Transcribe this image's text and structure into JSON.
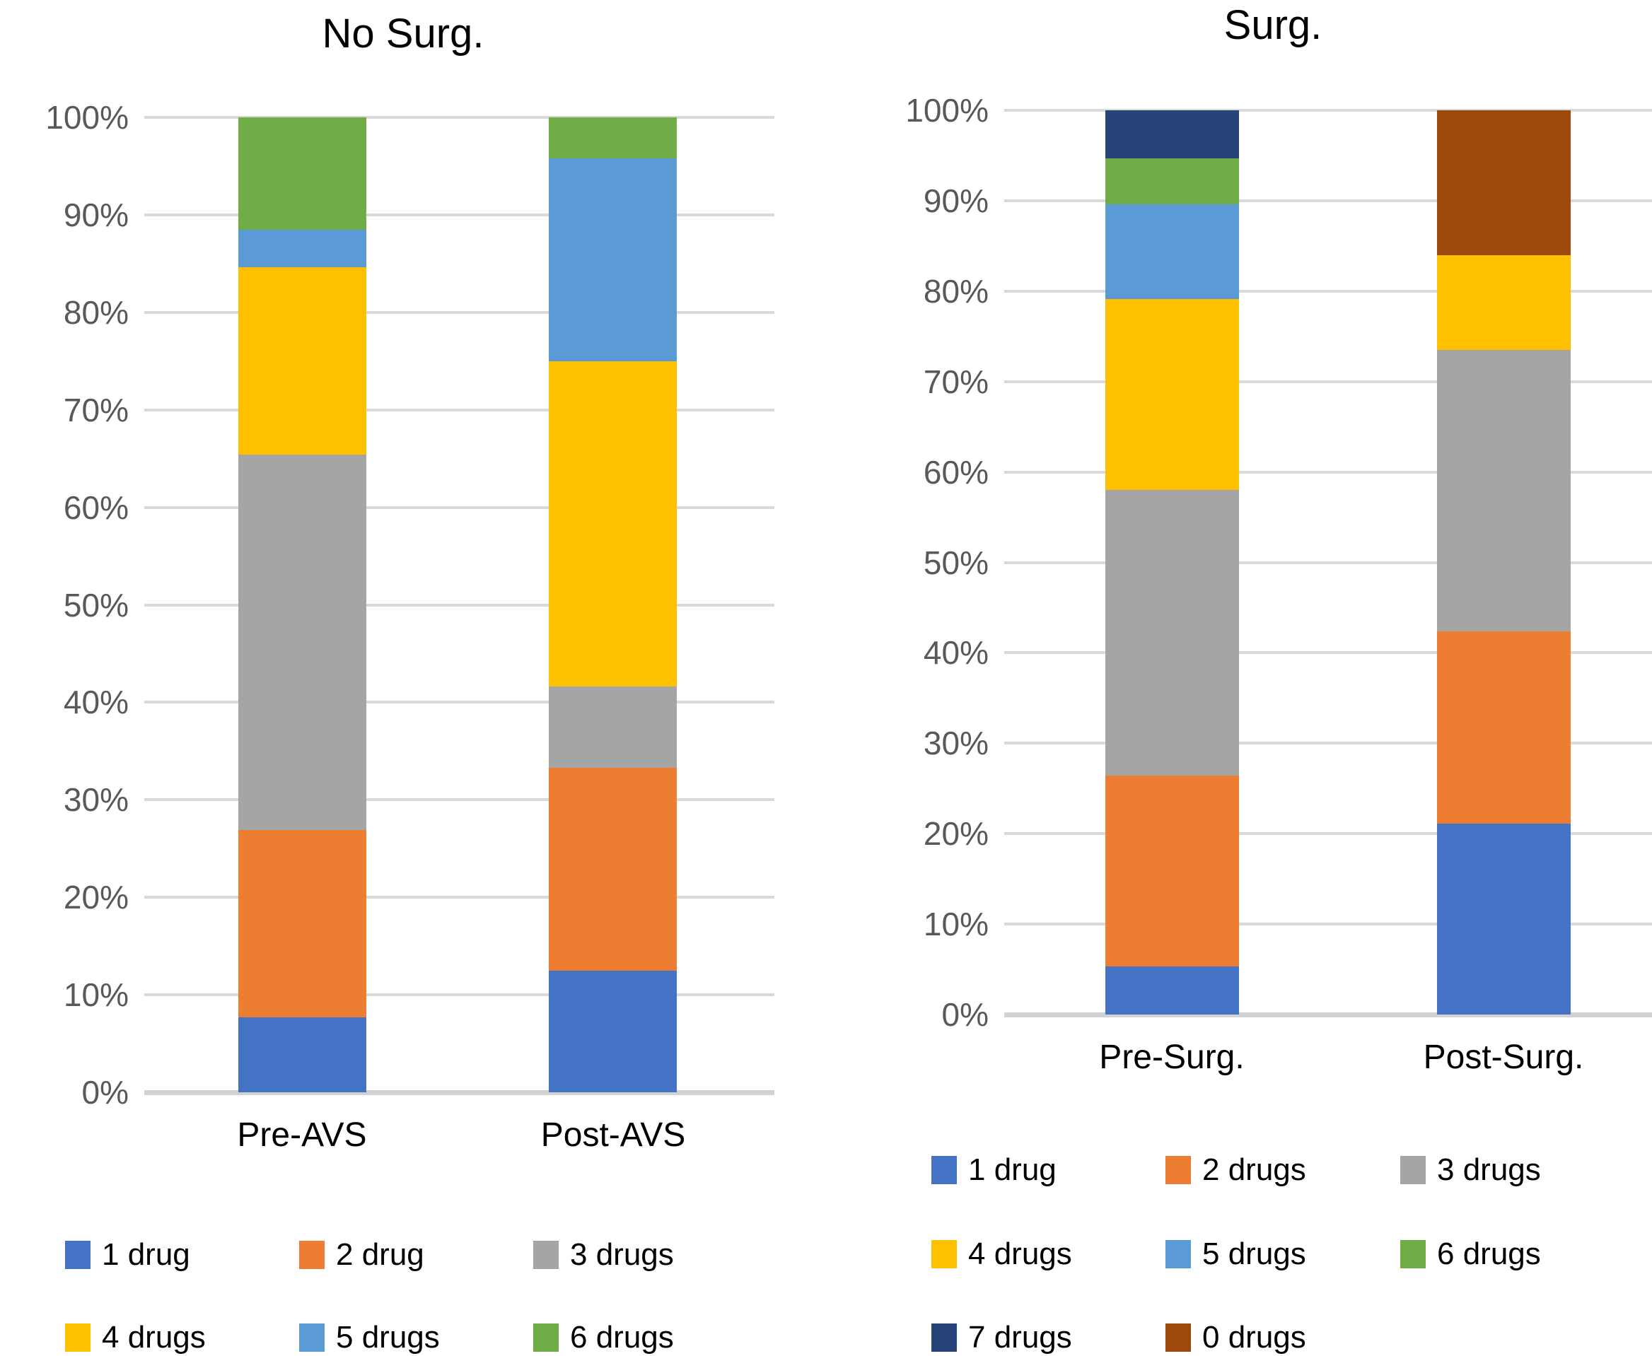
{
  "chart_data": [
    {
      "type": "bar",
      "subtype": "stacked-100-percent",
      "title": "No Surg.",
      "categories": [
        "Pre-AVS",
        "Post-AVS"
      ],
      "y_ticks": [
        "100%",
        "90%",
        "80%",
        "70%",
        "60%",
        "50%",
        "40%",
        "30%",
        "20%",
        "10%",
        "0%"
      ],
      "ylim": [
        0,
        100
      ],
      "grid": true,
      "legend_position": "bottom",
      "series": [
        {
          "name": "1 drug",
          "color": "#4472C4",
          "values": [
            7.7,
            12.5
          ]
        },
        {
          "name": "2 drug",
          "color": "#ED7D31",
          "values": [
            19.2,
            20.8
          ]
        },
        {
          "name": "3 drugs",
          "color": "#A5A5A5",
          "values": [
            38.5,
            8.3
          ]
        },
        {
          "name": "4 drugs",
          "color": "#FFC000",
          "values": [
            19.2,
            33.4
          ]
        },
        {
          "name": "5 drugs",
          "color": "#5B9BD5",
          "values": [
            3.9,
            20.8
          ]
        },
        {
          "name": "6 drugs",
          "color": "#70AD47",
          "values": [
            11.5,
            4.2
          ]
        }
      ],
      "legend_rows": [
        [
          "1 drug",
          "2 drug",
          "3 drugs"
        ],
        [
          "4 drugs",
          "5 drugs",
          "6 drugs"
        ]
      ]
    },
    {
      "type": "bar",
      "subtype": "stacked-100-percent",
      "title": "Surg.",
      "categories": [
        "Pre-Surg.",
        "Post-Surg."
      ],
      "y_ticks": [
        "100%",
        "90%",
        "80%",
        "70%",
        "60%",
        "50%",
        "40%",
        "30%",
        "20%",
        "10%",
        "0%"
      ],
      "ylim": [
        0,
        100
      ],
      "grid": true,
      "legend_position": "bottom",
      "series": [
        {
          "name": "1 drug",
          "color": "#4472C4",
          "values": [
            5.3,
            21.1
          ]
        },
        {
          "name": "2 drugs",
          "color": "#ED7D31",
          "values": [
            21.1,
            21.3
          ]
        },
        {
          "name": "3 drugs",
          "color": "#A5A5A5",
          "values": [
            31.6,
            31.1
          ]
        },
        {
          "name": "4 drugs",
          "color": "#FFC000",
          "values": [
            21.1,
            10.5
          ]
        },
        {
          "name": "5 drugs",
          "color": "#5B9BD5",
          "values": [
            10.5,
            0
          ]
        },
        {
          "name": "6 drugs",
          "color": "#70AD47",
          "values": [
            5.1,
            0
          ]
        },
        {
          "name": "7 drugs",
          "color": "#264478",
          "values": [
            5.3,
            0
          ]
        },
        {
          "name": "0 drugs",
          "color": "#9E480E",
          "values": [
            0,
            16.0
          ]
        }
      ],
      "legend_rows": [
        [
          "1 drug",
          "2 drugs",
          "3 drugs"
        ],
        [
          "4 drugs",
          "5 drugs",
          "6 drugs"
        ],
        [
          "7 drugs",
          "0 drugs"
        ]
      ]
    }
  ]
}
